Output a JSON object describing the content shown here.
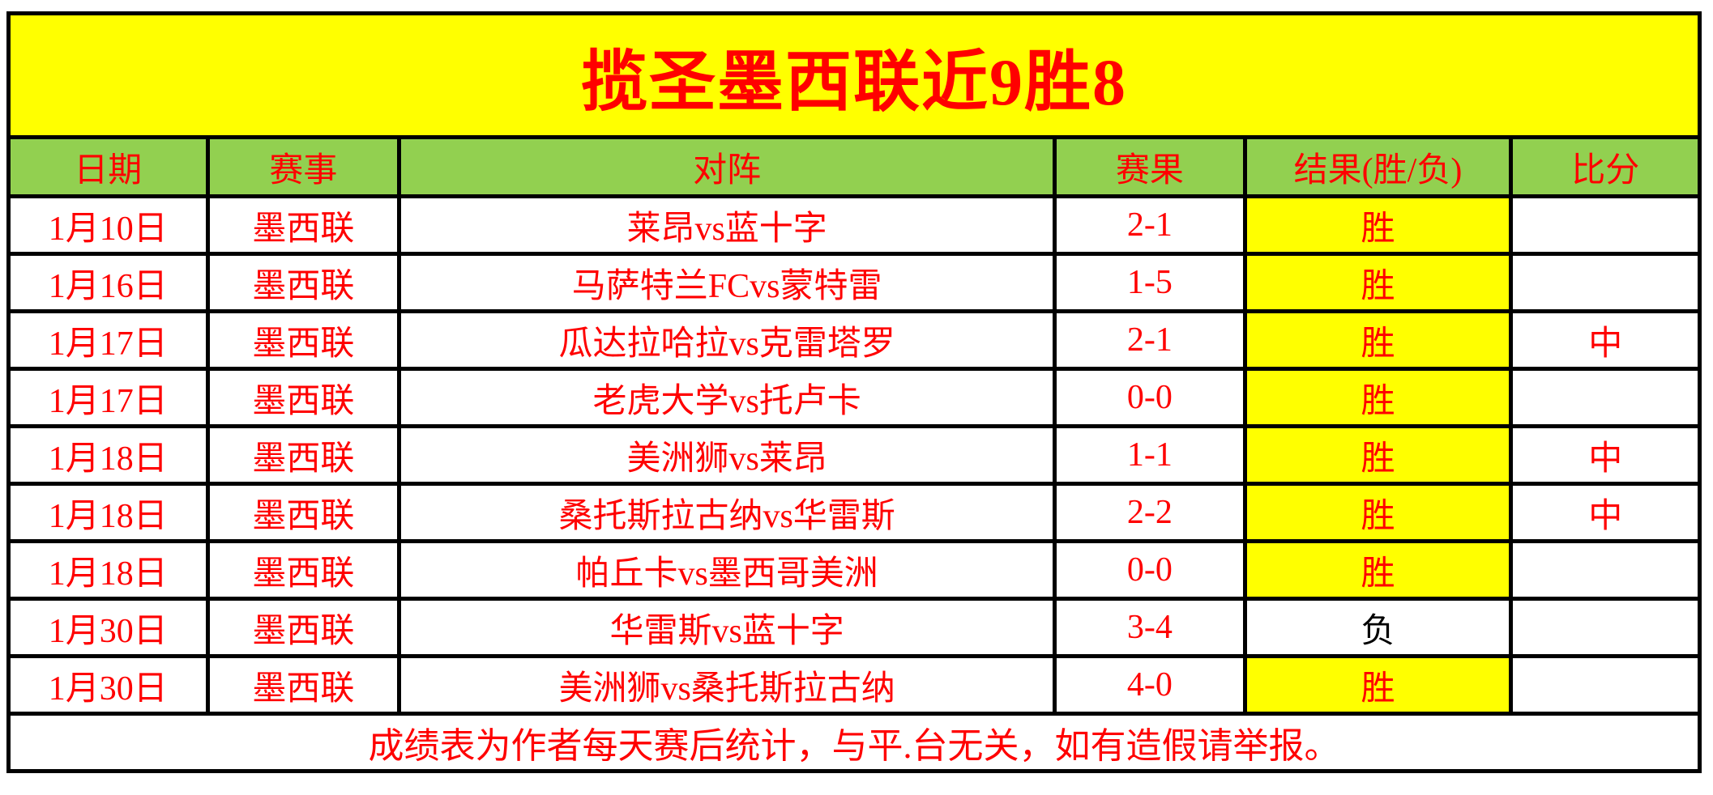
{
  "title": "揽圣墨西联近9胜8",
  "columns": {
    "date": "日期",
    "league": "赛事",
    "match": "对阵",
    "score": "赛果",
    "result": "结果(胜/负)",
    "hit": "比分"
  },
  "rows": [
    {
      "date": "1月10日",
      "league": "墨西联",
      "match": "莱昂vs蓝十字",
      "score": "2-1",
      "result": "胜",
      "hit": ""
    },
    {
      "date": "1月16日",
      "league": "墨西联",
      "match": "马萨特兰FCvs蒙特雷",
      "score": "1-5",
      "result": "胜",
      "hit": ""
    },
    {
      "date": "1月17日",
      "league": "墨西联",
      "match": "瓜达拉哈拉vs克雷塔罗",
      "score": "2-1",
      "result": "胜",
      "hit": "中"
    },
    {
      "date": "1月17日",
      "league": "墨西联",
      "match": "老虎大学vs托卢卡",
      "score": "0-0",
      "result": "胜",
      "hit": ""
    },
    {
      "date": "1月18日",
      "league": "墨西联",
      "match": "美洲狮vs莱昂",
      "score": "1-1",
      "result": "胜",
      "hit": "中"
    },
    {
      "date": "1月18日",
      "league": "墨西联",
      "match": "桑托斯拉古纳vs华雷斯",
      "score": "2-2",
      "result": "胜",
      "hit": "中"
    },
    {
      "date": "1月18日",
      "league": "墨西联",
      "match": "帕丘卡vs墨西哥美洲",
      "score": "0-0",
      "result": "胜",
      "hit": ""
    },
    {
      "date": "1月30日",
      "league": "墨西联",
      "match": "华雷斯vs蓝十字",
      "score": "3-4",
      "result": "负",
      "hit": ""
    },
    {
      "date": "1月30日",
      "league": "墨西联",
      "match": "美洲狮vs桑托斯拉古纳",
      "score": "4-0",
      "result": "胜",
      "hit": ""
    }
  ],
  "footer": "成绩表为作者每天赛后统计，与平.台无关，如有造假请举报。",
  "colors": {
    "banner_bg": "#FFFF00",
    "header_bg": "#92D050",
    "win_bg": "#FFFF00",
    "text_red": "#FF0000",
    "lose_text": "#000000",
    "border": "#000000"
  },
  "chart_data": {
    "type": "table",
    "title": "揽圣墨西联近9胜8",
    "columns": [
      "日期",
      "赛事",
      "对阵",
      "赛果",
      "结果(胜/负)",
      "比分"
    ],
    "rows": [
      [
        "1月10日",
        "墨西联",
        "莱昂vs蓝十字",
        "2-1",
        "胜",
        ""
      ],
      [
        "1月16日",
        "墨西联",
        "马萨特兰FCvs蒙特雷",
        "1-5",
        "胜",
        ""
      ],
      [
        "1月17日",
        "墨西联",
        "瓜达拉哈拉vs克雷塔罗",
        "2-1",
        "胜",
        "中"
      ],
      [
        "1月17日",
        "墨西联",
        "老虎大学vs托卢卡",
        "0-0",
        "胜",
        ""
      ],
      [
        "1月18日",
        "墨西联",
        "美洲狮vs莱昂",
        "1-1",
        "胜",
        "中"
      ],
      [
        "1月18日",
        "墨西联",
        "桑托斯拉古纳vs华雷斯",
        "2-2",
        "胜",
        "中"
      ],
      [
        "1月18日",
        "墨西联",
        "帕丘卡vs墨西哥美洲",
        "0-0",
        "胜",
        ""
      ],
      [
        "1月30日",
        "墨西联",
        "华雷斯vs蓝十字",
        "3-4",
        "负",
        ""
      ],
      [
        "1月30日",
        "墨西联",
        "美洲狮vs桑托斯拉古纳",
        "4-0",
        "胜",
        ""
      ]
    ]
  }
}
